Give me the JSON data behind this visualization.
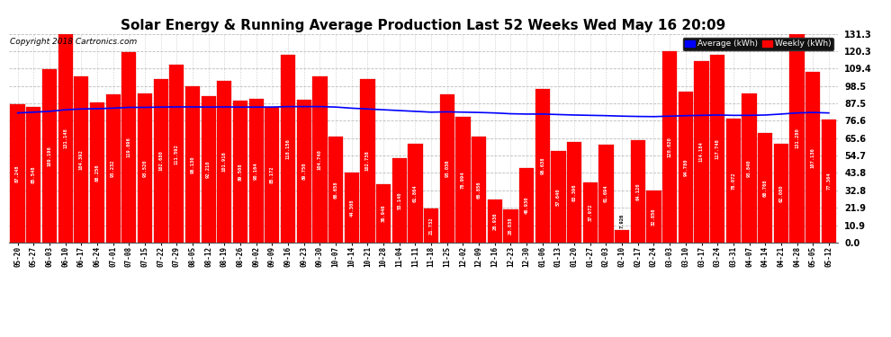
{
  "title": "Solar Energy & Running Average Production Last 52 Weeks Wed May 16 20:09",
  "copyright": "Copyright 2018 Cartronics.com",
  "yticks": [
    0.0,
    10.9,
    21.9,
    32.8,
    43.8,
    54.7,
    65.6,
    76.6,
    87.5,
    98.5,
    109.4,
    120.3,
    131.3
  ],
  "bar_color": "#ff0000",
  "avg_line_color": "#0000ff",
  "background_color": "#ffffff",
  "grid_color": "#bbbbbb",
  "categories": [
    "05-20",
    "05-27",
    "06-03",
    "06-10",
    "06-17",
    "06-24",
    "07-01",
    "07-08",
    "07-15",
    "07-22",
    "07-29",
    "08-05",
    "08-12",
    "08-19",
    "08-26",
    "09-02",
    "09-09",
    "09-16",
    "09-23",
    "09-30",
    "10-07",
    "10-14",
    "10-21",
    "10-28",
    "11-04",
    "11-11",
    "11-18",
    "11-25",
    "12-02",
    "12-09",
    "12-16",
    "12-23",
    "12-30",
    "01-06",
    "01-13",
    "01-20",
    "01-27",
    "02-03",
    "02-10",
    "02-17",
    "02-24",
    "03-03",
    "03-10",
    "03-17",
    "03-24",
    "03-31",
    "04-07",
    "04-14",
    "04-21",
    "04-28",
    "05-05",
    "05-12"
  ],
  "weekly_values": [
    87.248,
    85.548,
    109.196,
    131.148,
    104.392,
    88.256,
    93.232,
    119.896,
    93.52,
    102.68,
    111.592,
    98.13,
    92.21,
    101.916,
    89.508,
    90.164,
    85.172,
    118.156,
    89.75,
    104.74,
    66.658,
    44.308,
    102.738,
    36.946,
    53.14,
    61.864,
    21.732,
    93.036,
    78.994,
    66.856,
    26.936,
    20.838,
    46.93,
    96.638,
    57.64,
    63.396,
    37.972,
    61.694,
    7.926,
    64.12,
    32.856,
    120.02,
    94.78,
    114.184,
    117.748,
    78.072,
    93.84,
    68.768,
    62.08,
    131.28,
    107.136,
    77.364
  ],
  "avg_values": [
    81.5,
    82.0,
    82.5,
    83.5,
    84.0,
    84.2,
    84.5,
    85.0,
    85.0,
    85.2,
    85.3,
    85.3,
    85.2,
    85.3,
    85.2,
    85.2,
    85.2,
    85.5,
    85.5,
    85.5,
    85.2,
    84.5,
    84.0,
    83.5,
    83.0,
    82.5,
    82.0,
    82.2,
    82.0,
    81.8,
    81.5,
    81.0,
    80.8,
    80.8,
    80.5,
    80.2,
    80.0,
    79.8,
    79.5,
    79.3,
    79.2,
    79.5,
    79.8,
    80.0,
    80.2,
    80.0,
    80.0,
    80.2,
    80.8,
    81.5,
    81.8,
    81.5
  ],
  "legend_avg_color": "#0000ff",
  "legend_avg_label": "Average (kWh)",
  "legend_weekly_color": "#ff0000",
  "legend_weekly_label": "Weekly (kWh)",
  "title_fontsize": 11,
  "copyright_fontsize": 6.5,
  "tick_fontsize": 5.5,
  "ytick_fontsize": 7,
  "bar_edge_color": "#cc0000"
}
